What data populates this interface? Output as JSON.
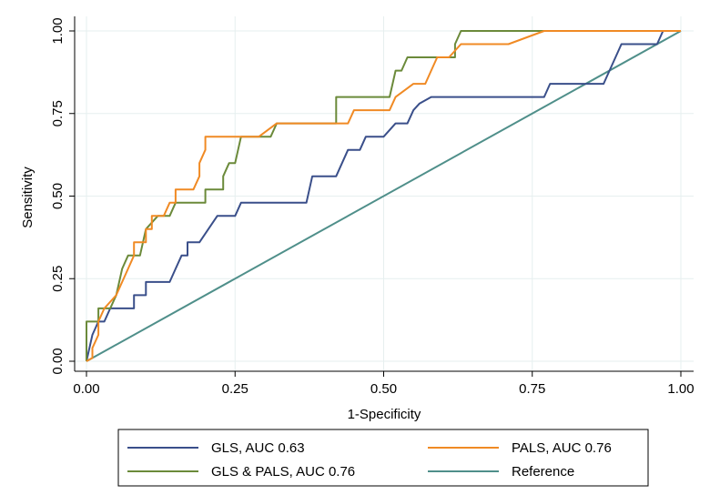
{
  "chart_data": {
    "type": "line",
    "title": "",
    "xlabel": "1-Specificity",
    "ylabel": "Sensitivity",
    "xlim": [
      0,
      1
    ],
    "ylim": [
      0,
      1
    ],
    "grid": true,
    "xticks": [
      0,
      0.25,
      0.5,
      0.75,
      1
    ],
    "xtick_labels": [
      "0.00",
      "0.25",
      "0.50",
      "0.75",
      "1.00"
    ],
    "yticks": [
      0,
      0.25,
      0.5,
      0.75,
      1
    ],
    "ytick_labels": [
      "0.00",
      "0.25",
      "0.50",
      "0.75",
      "1.00"
    ],
    "legend_position": "bottom",
    "series": [
      {
        "name": "GLS, AUC 0.63",
        "color": "#3a4f8a",
        "points": [
          [
            0,
            0
          ],
          [
            0.01,
            0.08
          ],
          [
            0.02,
            0.12
          ],
          [
            0.03,
            0.12
          ],
          [
            0.04,
            0.16
          ],
          [
            0.05,
            0.16
          ],
          [
            0.08,
            0.16
          ],
          [
            0.08,
            0.2
          ],
          [
            0.1,
            0.2
          ],
          [
            0.1,
            0.24
          ],
          [
            0.14,
            0.24
          ],
          [
            0.15,
            0.28
          ],
          [
            0.16,
            0.32
          ],
          [
            0.17,
            0.32
          ],
          [
            0.17,
            0.36
          ],
          [
            0.19,
            0.36
          ],
          [
            0.22,
            0.44
          ],
          [
            0.23,
            0.44
          ],
          [
            0.25,
            0.44
          ],
          [
            0.26,
            0.48
          ],
          [
            0.37,
            0.48
          ],
          [
            0.38,
            0.56
          ],
          [
            0.42,
            0.56
          ],
          [
            0.43,
            0.6
          ],
          [
            0.44,
            0.64
          ],
          [
            0.46,
            0.64
          ],
          [
            0.47,
            0.68
          ],
          [
            0.5,
            0.68
          ],
          [
            0.51,
            0.7
          ],
          [
            0.52,
            0.72
          ],
          [
            0.54,
            0.72
          ],
          [
            0.55,
            0.76
          ],
          [
            0.56,
            0.78
          ],
          [
            0.58,
            0.8
          ],
          [
            0.77,
            0.8
          ],
          [
            0.78,
            0.84
          ],
          [
            0.87,
            0.84
          ],
          [
            0.88,
            0.88
          ],
          [
            0.89,
            0.92
          ],
          [
            0.9,
            0.96
          ],
          [
            0.96,
            0.96
          ],
          [
            0.97,
            1
          ],
          [
            1,
            1
          ]
        ]
      },
      {
        "name": "PALS, AUC 0.76",
        "color": "#f08a24",
        "points": [
          [
            0,
            0
          ],
          [
            0.01,
            0.01
          ],
          [
            0.01,
            0.04
          ],
          [
            0.02,
            0.08
          ],
          [
            0.02,
            0.12
          ],
          [
            0.03,
            0.16
          ],
          [
            0.05,
            0.2
          ],
          [
            0.06,
            0.24
          ],
          [
            0.07,
            0.28
          ],
          [
            0.08,
            0.32
          ],
          [
            0.08,
            0.36
          ],
          [
            0.1,
            0.36
          ],
          [
            0.1,
            0.4
          ],
          [
            0.11,
            0.4
          ],
          [
            0.11,
            0.44
          ],
          [
            0.13,
            0.44
          ],
          [
            0.14,
            0.48
          ],
          [
            0.15,
            0.48
          ],
          [
            0.15,
            0.52
          ],
          [
            0.18,
            0.52
          ],
          [
            0.19,
            0.56
          ],
          [
            0.19,
            0.6
          ],
          [
            0.2,
            0.64
          ],
          [
            0.2,
            0.68
          ],
          [
            0.29,
            0.68
          ],
          [
            0.32,
            0.72
          ],
          [
            0.44,
            0.72
          ],
          [
            0.45,
            0.76
          ],
          [
            0.51,
            0.76
          ],
          [
            0.52,
            0.8
          ],
          [
            0.55,
            0.84
          ],
          [
            0.57,
            0.84
          ],
          [
            0.58,
            0.88
          ],
          [
            0.59,
            0.92
          ],
          [
            0.61,
            0.92
          ],
          [
            0.63,
            0.96
          ],
          [
            0.71,
            0.96
          ],
          [
            0.77,
            1
          ],
          [
            1,
            1
          ]
        ]
      },
      {
        "name": "GLS & PALS, AUC 0.76",
        "color": "#6b8a3a",
        "points": [
          [
            0,
            0
          ],
          [
            0,
            0.12
          ],
          [
            0.02,
            0.12
          ],
          [
            0.02,
            0.16
          ],
          [
            0.04,
            0.16
          ],
          [
            0.05,
            0.2
          ],
          [
            0.06,
            0.28
          ],
          [
            0.07,
            0.32
          ],
          [
            0.09,
            0.32
          ],
          [
            0.1,
            0.4
          ],
          [
            0.12,
            0.44
          ],
          [
            0.14,
            0.44
          ],
          [
            0.15,
            0.48
          ],
          [
            0.2,
            0.48
          ],
          [
            0.2,
            0.52
          ],
          [
            0.23,
            0.52
          ],
          [
            0.23,
            0.56
          ],
          [
            0.24,
            0.6
          ],
          [
            0.25,
            0.6
          ],
          [
            0.26,
            0.68
          ],
          [
            0.31,
            0.68
          ],
          [
            0.32,
            0.72
          ],
          [
            0.42,
            0.72
          ],
          [
            0.42,
            0.8
          ],
          [
            0.51,
            0.8
          ],
          [
            0.52,
            0.88
          ],
          [
            0.53,
            0.88
          ],
          [
            0.54,
            0.92
          ],
          [
            0.62,
            0.92
          ],
          [
            0.62,
            0.96
          ],
          [
            0.63,
            1
          ],
          [
            1,
            1
          ]
        ]
      },
      {
        "name": "Reference",
        "color": "#4f8f8a",
        "points": [
          [
            0,
            0
          ],
          [
            1,
            1
          ]
        ]
      }
    ]
  }
}
